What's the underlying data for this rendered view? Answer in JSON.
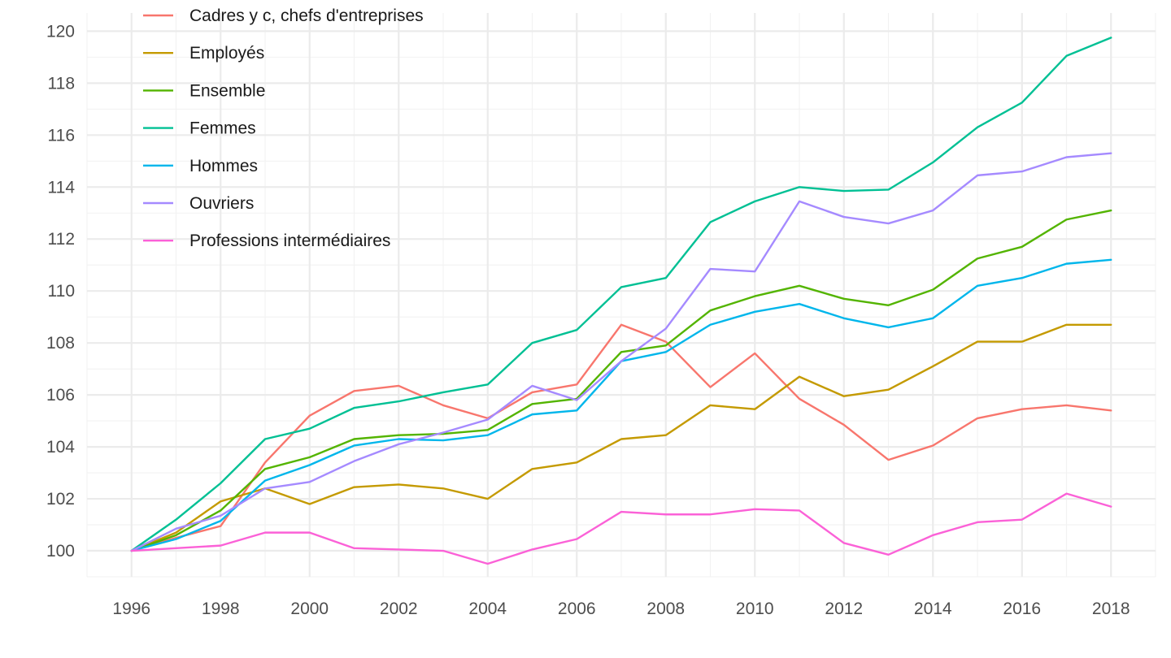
{
  "chart_data": {
    "type": "line",
    "title": "",
    "xlabel": "",
    "ylabel": "",
    "x": [
      1996,
      1997,
      1998,
      1999,
      2000,
      2001,
      2002,
      2003,
      2004,
      2005,
      2006,
      2007,
      2008,
      2009,
      2010,
      2011,
      2012,
      2013,
      2014,
      2015,
      2016,
      2017,
      2018
    ],
    "xlim": [
      1995,
      2019
    ],
    "ylim": [
      99,
      120.7
    ],
    "x_ticks": [
      1996,
      1998,
      2000,
      2002,
      2004,
      2006,
      2008,
      2010,
      2012,
      2014,
      2016,
      2018
    ],
    "y_ticks": [
      100,
      102,
      104,
      106,
      108,
      110,
      112,
      114,
      116,
      118,
      120
    ],
    "grid": true,
    "legend_position": "top-left",
    "series": [
      {
        "name": "Cadres y c, chefs d'entreprises",
        "color": "#F8766D",
        "values": [
          100,
          100.5,
          100.95,
          103.4,
          105.2,
          106.15,
          106.35,
          105.6,
          105.1,
          106.1,
          106.4,
          108.7,
          108.05,
          106.3,
          107.6,
          105.85,
          104.85,
          103.5,
          104.05,
          105.1,
          105.45,
          105.6,
          105.4
        ]
      },
      {
        "name": "Employés",
        "color": "#C49A00",
        "values": [
          100,
          100.7,
          101.9,
          102.4,
          101.8,
          102.45,
          102.55,
          102.4,
          102.0,
          103.15,
          103.4,
          104.3,
          104.45,
          105.6,
          105.45,
          106.7,
          105.95,
          106.2,
          107.1,
          108.05,
          108.05,
          108.7,
          108.7
        ]
      },
      {
        "name": "Ensemble",
        "color": "#53B400",
        "values": [
          100,
          100.6,
          101.55,
          103.15,
          103.6,
          104.3,
          104.45,
          104.5,
          104.65,
          105.65,
          105.85,
          107.65,
          107.9,
          109.25,
          109.8,
          110.2,
          109.7,
          109.45,
          110.05,
          111.25,
          111.7,
          112.75,
          113.1
        ]
      },
      {
        "name": "Femmes",
        "color": "#00C094",
        "values": [
          100,
          101.2,
          102.6,
          104.3,
          104.7,
          105.5,
          105.75,
          106.1,
          106.4,
          108.0,
          108.5,
          110.15,
          110.5,
          112.65,
          113.45,
          114.0,
          113.85,
          113.9,
          114.95,
          116.3,
          117.25,
          119.05,
          119.75
        ]
      },
      {
        "name": "Hommes",
        "color": "#00B6EB",
        "values": [
          100,
          100.45,
          101.15,
          102.7,
          103.3,
          104.05,
          104.3,
          104.25,
          104.45,
          105.25,
          105.4,
          107.3,
          107.65,
          108.7,
          109.2,
          109.5,
          108.95,
          108.6,
          108.95,
          110.2,
          110.5,
          111.05,
          111.2
        ]
      },
      {
        "name": "Ouvriers",
        "color": "#A58AFF",
        "values": [
          100,
          100.85,
          101.35,
          102.4,
          102.65,
          103.45,
          104.1,
          104.55,
          105.05,
          106.35,
          105.8,
          107.3,
          108.55,
          110.85,
          110.75,
          113.45,
          112.85,
          112.6,
          113.1,
          114.45,
          114.6,
          115.15,
          115.3
        ]
      },
      {
        "name": "Professions intermédiaires",
        "color": "#FB61D7",
        "values": [
          100,
          100.1,
          100.2,
          100.7,
          100.7,
          100.1,
          100.05,
          100.0,
          99.5,
          100.05,
          100.45,
          101.5,
          101.4,
          101.4,
          101.6,
          101.55,
          100.3,
          99.85,
          100.6,
          101.1,
          101.2,
          102.2,
          101.7
        ]
      }
    ]
  }
}
